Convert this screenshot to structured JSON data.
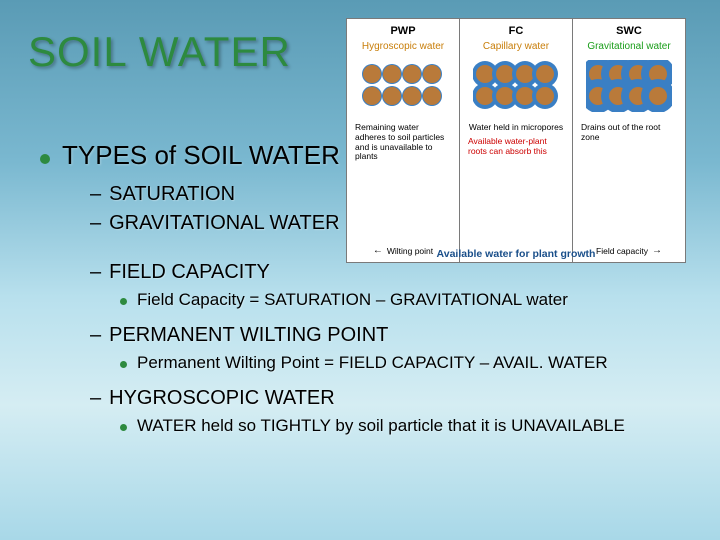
{
  "title": "SOIL WATER",
  "main_bullet": "TYPES of SOIL WATER",
  "subs": {
    "saturation": "SATURATION",
    "grav": "GRAVITATIONAL WATER",
    "fc": "FIELD CAPACITY",
    "fc_sub": "Field Capacity = SATURATION – GRAVITATIONAL water",
    "pwp": "PERMANENT WILTING POINT",
    "pwp_sub": "Permanent Wilting Point = FIELD CAPACITY – AVAIL. WATER",
    "hyg": "HYGROSCOPIC WATER",
    "hyg_sub": "WATER held so TIGHTLY by soil particle that it is UNAVAILABLE"
  },
  "diagram": {
    "footer": "Available water for plant growth",
    "cols": [
      {
        "hdr": "PWP",
        "sub": "Hygroscopic water",
        "sub_color": "#c87e0a",
        "particle_rows": 2,
        "particle_cols": 4,
        "particle_color": "#b97a3a",
        "film_color": "#3a7fc4",
        "film_thickness": 1,
        "caption": "Remaining water adheres to soil particles and is unavailable to plants",
        "bot": "Wilting point",
        "bot_arrow": "left"
      },
      {
        "hdr": "FC",
        "sub": "Capillary water",
        "sub_color": "#c87e0a",
        "particle_rows": 2,
        "particle_cols": 4,
        "particle_color": "#b97a3a",
        "film_color": "#3a7fc4",
        "film_thickness": 4,
        "caption": "Water held in micropores",
        "caption2": "Available water-plant roots can absorb this",
        "bot": "",
        "bot_arrow": ""
      },
      {
        "hdr": "SWC",
        "sub": "Gravitational water",
        "sub_color": "#1a9e1a",
        "particle_rows": 2,
        "particle_cols": 4,
        "particle_color": "#b97a3a",
        "film_color": "#3a7fc4",
        "film_thickness": 8,
        "caption": "Drains out of the root zone",
        "bot": "Field capacity",
        "bot_arrow": "right"
      }
    ]
  },
  "colors": {
    "title_color": "#2d8a3f",
    "bullet_color": "#2d8a3f",
    "text_color": "#000000"
  }
}
